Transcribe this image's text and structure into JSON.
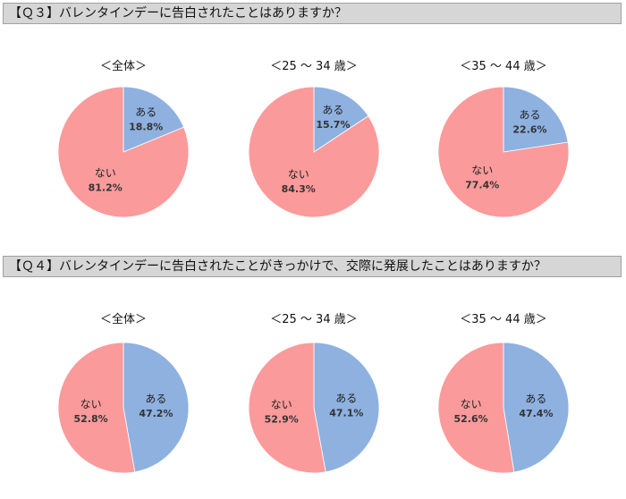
{
  "questions": [
    {
      "label": "【Ｑ３】バレンタインデーに告白されたことはありますか？"
    },
    {
      "label": "【Ｑ４】バレンタインデーに告白されたことがきっかけで、交際に発展したことはありますか？"
    }
  ],
  "colors": {
    "aru": "#8eb1e0",
    "nai": "#fb9a9b",
    "header_bg": "#d6d6d6"
  },
  "chart_data": [
    {
      "type": "pie",
      "title": "＜全体＞",
      "slices": [
        {
          "label": "ある",
          "value": 18.8,
          "value_text": "18.8%"
        },
        {
          "label": "ない",
          "value": 81.2,
          "value_text": "81.2%"
        }
      ]
    },
    {
      "type": "pie",
      "title": "＜25 ～ 34 歳＞",
      "slices": [
        {
          "label": "ある",
          "value": 15.7,
          "value_text": "15.7%"
        },
        {
          "label": "ない",
          "value": 84.3,
          "value_text": "84.3%"
        }
      ]
    },
    {
      "type": "pie",
      "title": "＜35 ～ 44 歳＞",
      "slices": [
        {
          "label": "ある",
          "value": 22.6,
          "value_text": "22.6%"
        },
        {
          "label": "ない",
          "value": 77.4,
          "value_text": "77.4%"
        }
      ]
    },
    {
      "type": "pie",
      "title": "＜全体＞",
      "slices": [
        {
          "label": "ある",
          "value": 47.2,
          "value_text": "47.2%"
        },
        {
          "label": "ない",
          "value": 52.8,
          "value_text": "52.8%"
        }
      ]
    },
    {
      "type": "pie",
      "title": "＜25 ～ 34 歳＞",
      "slices": [
        {
          "label": "ある",
          "value": 47.1,
          "value_text": "47.1%"
        },
        {
          "label": "ない",
          "value": 52.9,
          "value_text": "52.9%"
        }
      ]
    },
    {
      "type": "pie",
      "title": "＜35 ～ 44 歳＞",
      "slices": [
        {
          "label": "ある",
          "value": 47.4,
          "value_text": "47.4%"
        },
        {
          "label": "ない",
          "value": 52.6,
          "value_text": "52.6%"
        }
      ]
    }
  ]
}
